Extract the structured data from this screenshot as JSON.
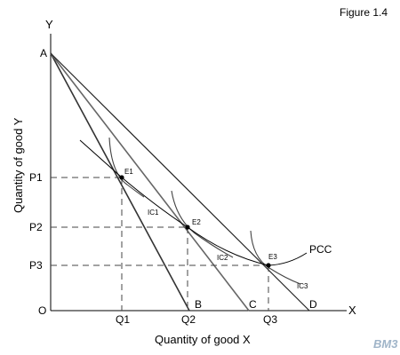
{
  "figure_label": "Figure 1.4",
  "axes": {
    "y_letter": "Y",
    "x_letter": "X",
    "origin": "O",
    "x_title": "Quantity of good X",
    "y_title": "Quantity of good Y"
  },
  "price_levels": [
    "P1",
    "P2",
    "P3"
  ],
  "quantities": [
    "Q1",
    "Q2",
    "Q3"
  ],
  "intercepts": {
    "a": "A",
    "b": "B",
    "c": "C",
    "d": "D"
  },
  "equilibria": [
    "E1",
    "E2",
    "E3"
  ],
  "indifference_curves": [
    "IC1",
    "IC2",
    "IC3"
  ],
  "curve_label": "PCC",
  "watermark": "BM3",
  "colors": {
    "line": "#000000",
    "budget_line_gray": "#555555",
    "curve_gray": "#444444",
    "dash": "#444444"
  }
}
